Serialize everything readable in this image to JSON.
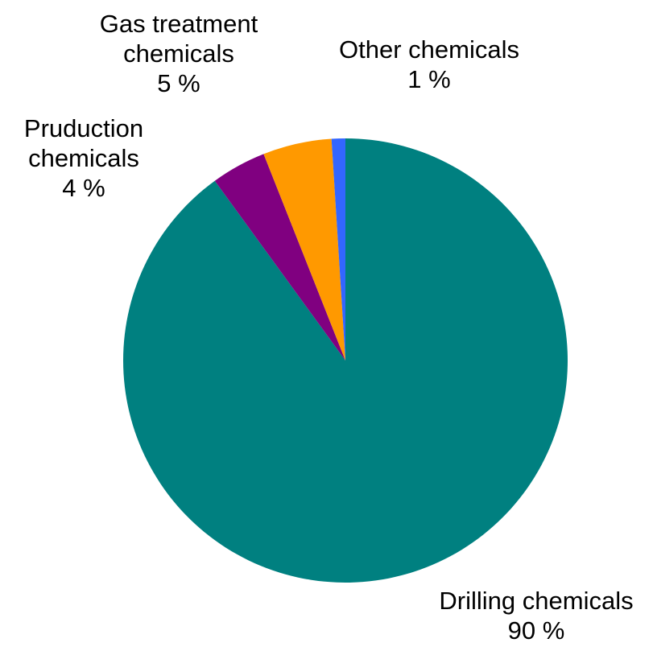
{
  "chart_data": {
    "type": "pie",
    "slices": [
      {
        "label_lines": [
          "Drilling chemicals"
        ],
        "value_text": "90 %",
        "value": 90,
        "color": "#008080"
      },
      {
        "label_lines": [
          "Pruduction",
          "chemicals"
        ],
        "value_text": "4 %",
        "value": 4,
        "color": "#800080"
      },
      {
        "label_lines": [
          "Gas treatment",
          "chemicals"
        ],
        "value_text": "5 %",
        "value": 5,
        "color": "#ff9900"
      },
      {
        "label_lines": [
          "Other chemicals"
        ],
        "value_text": "1 %",
        "value": 1,
        "color": "#3366ff"
      }
    ],
    "start": "12 o'clock",
    "direction": "clockwise",
    "legend": "none"
  }
}
